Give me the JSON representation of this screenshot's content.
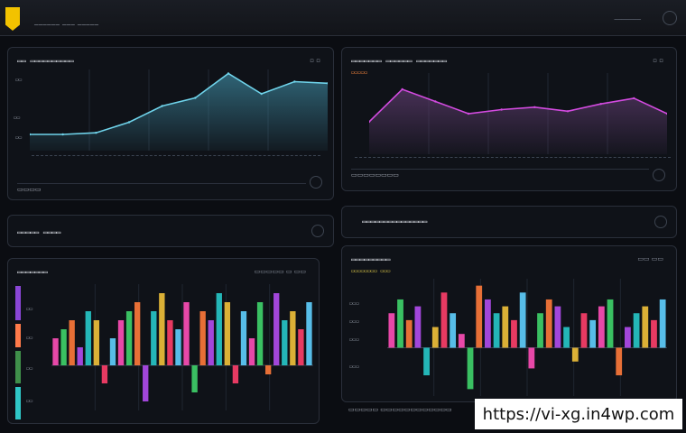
{
  "header": {
    "logo_icon": "shield-badge-icon",
    "title": "────── ─── ─────",
    "right_text": "───────",
    "menu_icon": "circle-menu-icon"
  },
  "panels": {
    "tl": {
      "title": "▭▭ ▭▭▭▭▭▭▭▭▭▭",
      "ctrl": "▫ ▫",
      "footer": "▭▭▭▭",
      "y_labels": [
        "▭▭",
        "▭▭",
        "▭▭"
      ]
    },
    "tr": {
      "title": "▭▭▭▭▭▭▭ ▭▭▭▭▭▭ ▭▭▭▭▭▭▭",
      "subtitle": "▭▭▭▭▭",
      "ctrl": "▫ ▫",
      "footer": "▭▭▭▭▭▭▭▭"
    },
    "ml": {
      "title": "▭▭▭▭▭ ▭▭▭▭"
    },
    "mr": {
      "title": "▭▭▭▭▭▭▭▭▭▭▭▭▭▭▭"
    },
    "bl": {
      "title": "▭▭▭▭▭▭▭",
      "ctrl": "▭▭▭▭▭ ▭ ▭▭",
      "y_labels": [
        "▭▭",
        "▭▭",
        "▭▭",
        "▭▭"
      ]
    },
    "br": {
      "title": "▭▭▭▭▭▭▭▭▭",
      "subtitle": "▭▭▭▭▭▭▭▭ ▭▭▭",
      "ctrl": "▭▭ ▭▭",
      "y_labels": [
        "▭▭▭",
        "▭▭▭",
        "▭▭▭",
        "▭▭▭"
      ],
      "footer": "▭▭▭▭▭ ▭▭▭▭▭▭▭▭▭▭▭▭"
    }
  },
  "watermark": {
    "text": "https://vi-xg.in4wp.com"
  },
  "chart_data": [
    {
      "type": "area",
      "series": [
        {
          "values": [
            2,
            2,
            2.2,
            3.5,
            5.5,
            6.5,
            9.5,
            7,
            8.5,
            8.3
          ]
        }
      ],
      "ylim": [
        0,
        10
      ]
    },
    {
      "type": "area",
      "series": [
        {
          "values": [
            4,
            8,
            6.5,
            5,
            5.5,
            5.8,
            5.3,
            6.2,
            6.9,
            5
          ]
        }
      ],
      "ylim": [
        0,
        10
      ]
    },
    {
      "type": "bar",
      "values": [
        3,
        4,
        5,
        2,
        6,
        5,
        -2,
        3,
        5,
        6,
        7,
        -4,
        6,
        8,
        5,
        4,
        7,
        -3,
        6,
        5,
        8,
        7,
        -2,
        6,
        3,
        7,
        -1,
        8,
        5,
        6,
        4,
        7
      ],
      "ylim": [
        -5,
        9
      ]
    },
    {
      "type": "bar",
      "values": [
        5,
        7,
        4,
        6,
        -4,
        3,
        8,
        5,
        2,
        -6,
        9,
        7,
        5,
        6,
        4,
        8,
        -3,
        5,
        7,
        6,
        3,
        -2,
        5,
        4,
        6,
        7,
        -4,
        3,
        5,
        6,
        4,
        7
      ],
      "ylim": [
        -7,
        10
      ]
    }
  ]
}
